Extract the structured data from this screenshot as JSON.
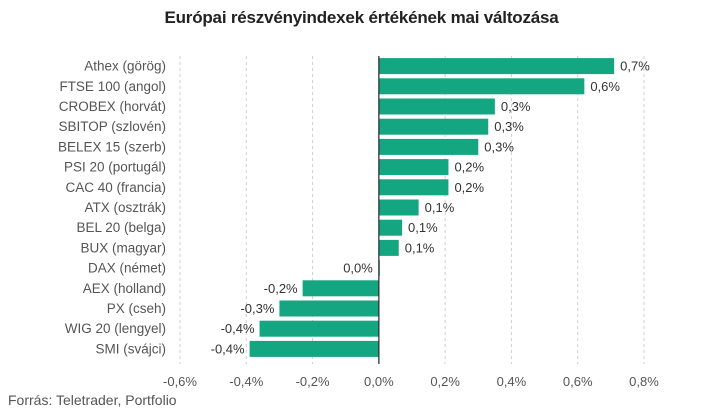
{
  "title": "Európai részvényindexek értékének mai változása",
  "source": "Forrás: Teletrader, Portfolio",
  "colors": {
    "bar": "#13a680",
    "grid": "#cfcfcf",
    "axis": "#333333"
  },
  "chart_data": {
    "type": "bar",
    "orientation": "horizontal",
    "title": "Európai részvényindexek értékének mai változása",
    "categories": [
      "Athex (görög)",
      "FTSE 100 (angol)",
      "CROBEX (horvát)",
      "SBITOP (szlovén)",
      "BELEX 15 (szerb)",
      "PSI 20 (portugál)",
      "CAC 40 (francia)",
      "ATX (osztrák)",
      "BEL 20 (belga)",
      "BUX (magyar)",
      "DAX (német)",
      "AEX (holland)",
      "PX (cseh)",
      "WIG 20 (lengyel)",
      "SMI (svájci)"
    ],
    "values": [
      0.71,
      0.62,
      0.35,
      0.33,
      0.3,
      0.21,
      0.21,
      0.12,
      0.07,
      0.06,
      0.0,
      -0.23,
      -0.3,
      -0.36,
      -0.39
    ],
    "value_labels": [
      "0,7%",
      "0,6%",
      "0,3%",
      "0,3%",
      "0,3%",
      "0,2%",
      "0,2%",
      "0,1%",
      "0,1%",
      "0,1%",
      "0,0%",
      "-0,2%",
      "-0,3%",
      "-0,4%",
      "-0,4%"
    ],
    "x_ticks": [
      -0.6,
      -0.4,
      -0.2,
      0.0,
      0.2,
      0.4,
      0.6,
      0.8
    ],
    "x_tick_labels": [
      "-0,6%",
      "-0,4%",
      "-0,2%",
      "0,0%",
      "0,2%",
      "0,4%",
      "0,6%",
      "0,8%"
    ],
    "xlim": [
      -0.6,
      0.8
    ],
    "grid": true
  }
}
